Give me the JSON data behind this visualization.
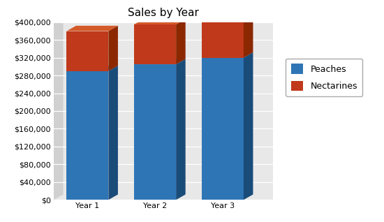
{
  "title": "Sales by Year",
  "categories": [
    "Year 1",
    "Year 2",
    "Year 3"
  ],
  "peaches": [
    290000,
    305000,
    320000
  ],
  "nectarines": [
    90000,
    90000,
    80000
  ],
  "peach_front": "#2E75B6",
  "peach_side": "#1A4C7A",
  "peach_top": "#4A8CC7",
  "nect_front": "#C0391B",
  "nect_side": "#8B2800",
  "nect_top": "#D45A2A",
  "ylim": [
    0,
    400000
  ],
  "yticks": [
    0,
    40000,
    80000,
    120000,
    160000,
    200000,
    240000,
    280000,
    320000,
    360000,
    400000
  ],
  "legend_labels": [
    "Peaches",
    "Nectarines"
  ],
  "background_color": "#ffffff",
  "plot_bg_color": "#e8e8e8",
  "grid_color": "#ffffff",
  "title_fontsize": 11,
  "tick_fontsize": 8,
  "legend_fontsize": 9
}
